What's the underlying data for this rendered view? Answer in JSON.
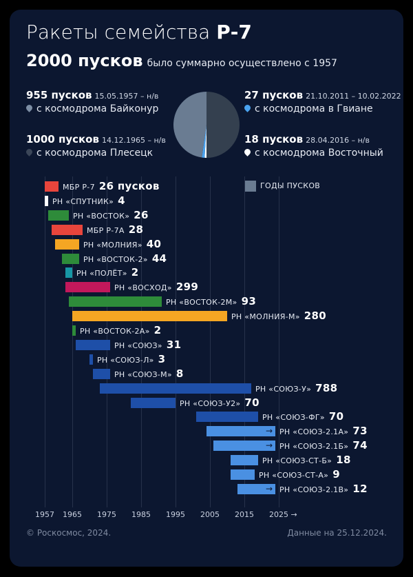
{
  "header": {
    "title_main": "Ракеты семейства ",
    "title_bold": "Р-7",
    "total": "2000 пусков",
    "total_note": "было суммарно осуществлено с 1957"
  },
  "sites": [
    {
      "count": "955 пусков",
      "dates": "15.05.1957 – н/в",
      "place": "с космодрома Байконур",
      "pin_color": "#7d8ea4"
    },
    {
      "count": "1000 пусков",
      "dates": "14.12.1965 – н/в",
      "place": "с космодрома Плесецк",
      "pin_color": "#3b4658"
    },
    {
      "count": "27 пусков",
      "dates": "21.10.2011 – 10.02.2022",
      "place": "с космодрома в Гвиане",
      "pin_color": "#4aa3f0"
    },
    {
      "count": "18 пусков",
      "dates": "28.04.2016 – н/в",
      "place": "с космодрома Восточный",
      "pin_color": "#ffffff"
    }
  ],
  "pie": {
    "values": [
      955,
      1000,
      27,
      18
    ],
    "colors": [
      "#6a7c92",
      "#34404f",
      "#4aa3f0",
      "#ffffff"
    ]
  },
  "legend": {
    "label": "ГОДЫ ПУСКОВ",
    "color": "#6a7c92"
  },
  "chart_data": {
    "type": "bar",
    "orientation": "horizontal-timeline",
    "x_ticks": [
      "1957",
      "1965",
      "1975",
      "1985",
      "1995",
      "2005",
      "2015",
      "2025 →"
    ],
    "series": [
      {
        "name": "МБР Р-7",
        "start": 1957,
        "end": 1961,
        "launches": "26 пусков",
        "color": "#e8453c",
        "arrow": false
      },
      {
        "name": "РН «СПУТНИК»",
        "start": 1957,
        "end": 1958,
        "launches": "4",
        "color": "#ffffff",
        "arrow": false
      },
      {
        "name": "РН «ВОСТОК»",
        "start": 1958,
        "end": 1964,
        "launches": "26",
        "color": "#2e8b3a",
        "arrow": false
      },
      {
        "name": "МБР Р-7А",
        "start": 1959,
        "end": 1968,
        "launches": "28",
        "color": "#e8453c",
        "arrow": false
      },
      {
        "name": "РН «МОЛНИЯ»",
        "start": 1960,
        "end": 1967,
        "launches": "40",
        "color": "#f5a623",
        "arrow": false
      },
      {
        "name": "РН «ВОСТОК-2»",
        "start": 1962,
        "end": 1967,
        "launches": "44",
        "color": "#2e8b3a",
        "arrow": false
      },
      {
        "name": "РН «ПОЛЁТ»",
        "start": 1963,
        "end": 1965,
        "launches": "2",
        "color": "#1797a6",
        "arrow": false
      },
      {
        "name": "РН «ВОСХОД»",
        "start": 1963,
        "end": 1976,
        "launches": "299",
        "color": "#c2185b",
        "arrow": false
      },
      {
        "name": "РН «ВОСТОК-2М»",
        "start": 1964,
        "end": 1991,
        "launches": "93",
        "color": "#2e8b3a",
        "arrow": false
      },
      {
        "name": "РН «МОЛНИЯ-М»",
        "start": 1965,
        "end": 2010,
        "launches": "280",
        "color": "#f5a623",
        "arrow": false
      },
      {
        "name": "РН «ВОСТОК-2А»",
        "start": 1965,
        "end": 1966,
        "launches": "2",
        "color": "#2e8b3a",
        "arrow": false
      },
      {
        "name": "РН «СОЮЗ»",
        "start": 1966,
        "end": 1976,
        "launches": "31",
        "color": "#1e4fa8",
        "arrow": false
      },
      {
        "name": "РН «СОЮЗ-Л»",
        "start": 1970,
        "end": 1971,
        "launches": "3",
        "color": "#1e4fa8",
        "arrow": false
      },
      {
        "name": "РН «СОЮЗ-М»",
        "start": 1971,
        "end": 1976,
        "launches": "8",
        "color": "#1e4fa8",
        "arrow": false
      },
      {
        "name": "РН «СОЮЗ-У»",
        "start": 1973,
        "end": 2017,
        "launches": "788",
        "color": "#1e4fa8",
        "arrow": false
      },
      {
        "name": "РН «СОЮЗ-У2»",
        "start": 1982,
        "end": 1995,
        "launches": "70",
        "color": "#1e4fa8",
        "arrow": false
      },
      {
        "name": "РН «СОЮЗ-ФГ»",
        "start": 2001,
        "end": 2019,
        "launches": "70",
        "color": "#1e4fa8",
        "arrow": false
      },
      {
        "name": "РН «СОЮЗ-2.1А»",
        "start": 2004,
        "end": 2024,
        "launches": "73",
        "color": "#4a90e2",
        "arrow": true
      },
      {
        "name": "РН «СОЮЗ-2.1Б»",
        "start": 2006,
        "end": 2024,
        "launches": "74",
        "color": "#4a90e2",
        "arrow": true
      },
      {
        "name": "РН «СОЮЗ-СТ-Б»",
        "start": 2011,
        "end": 2019,
        "launches": "18",
        "color": "#4a90e2",
        "arrow": false
      },
      {
        "name": "РН «СОЮЗ-СТ-А»",
        "start": 2011,
        "end": 2018,
        "launches": "9",
        "color": "#4a90e2",
        "arrow": false
      },
      {
        "name": "РН «СОЮЗ-2.1В»",
        "start": 2013,
        "end": 2024,
        "launches": "12",
        "color": "#4a90e2",
        "arrow": true
      }
    ]
  },
  "footer": {
    "copyright": "© Роскосмос, 2024.",
    "date": "Данные на 25.12.2024."
  }
}
